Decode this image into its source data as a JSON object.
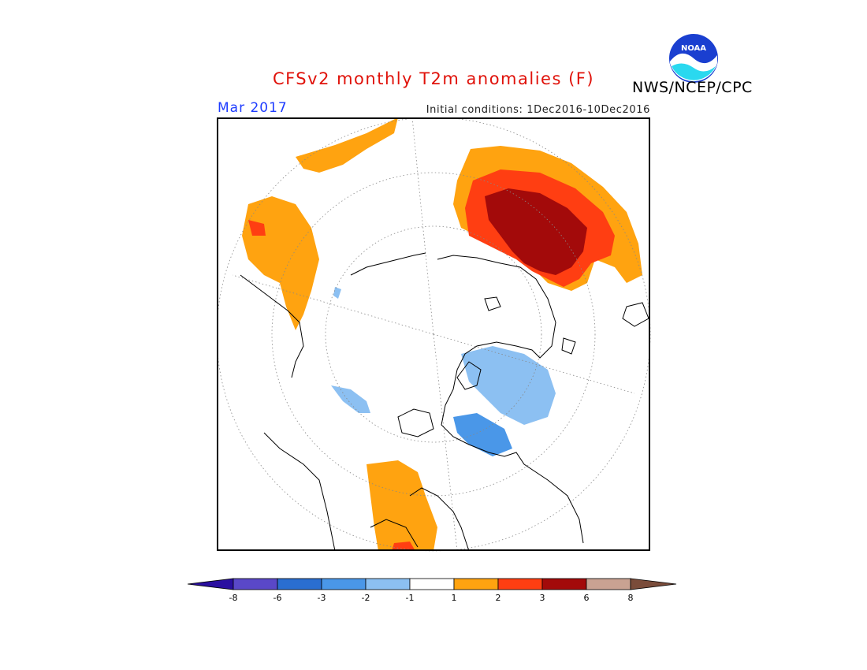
{
  "header": {
    "title": "CFSv2 monthly T2m anomalies (F)",
    "agency": "NWS/NCEP/CPC",
    "valid_month": "Mar 2017",
    "initial_conditions": "Initial conditions: 1Dec2016-10Dec2016",
    "logo_text": "NOAA"
  },
  "colors": {
    "title": "#e0120a",
    "valid_month": "#1e3cff",
    "frame": "#000000"
  },
  "colorbar": {
    "ticks": [
      "-8",
      "-6",
      "-3",
      "-2",
      "-1",
      "1",
      "2",
      "3",
      "6",
      "8"
    ],
    "colors": [
      "#2a0fa0",
      "#5a48c8",
      "#2a6ed0",
      "#4a97e8",
      "#8cc0f2",
      "#ffffff",
      "#ffa310",
      "#ff3e12",
      "#a30a0a",
      "#c9a292",
      "#7a4c3a"
    ]
  }
}
